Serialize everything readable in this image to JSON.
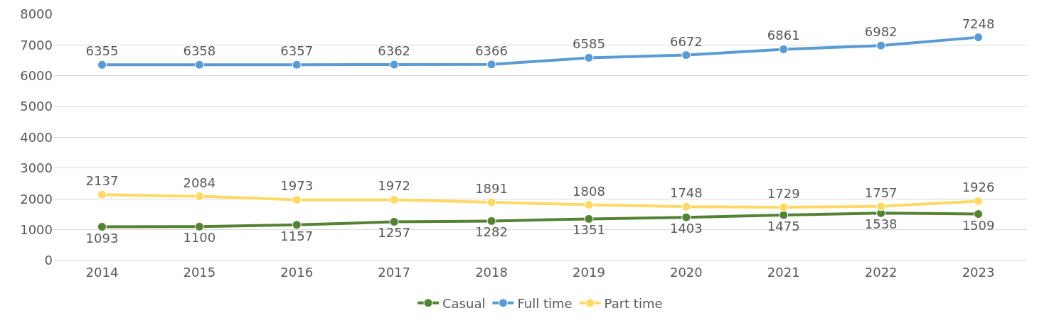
{
  "chart_data": {
    "type": "line",
    "categories": [
      "2014",
      "2015",
      "2016",
      "2017",
      "2018",
      "2019",
      "2020",
      "2021",
      "2022",
      "2023"
    ],
    "series": [
      {
        "name": "Casual",
        "color": "#548235",
        "values": [
          1093,
          1100,
          1157,
          1257,
          1282,
          1351,
          1403,
          1475,
          1538,
          1509
        ]
      },
      {
        "name": "Full time",
        "color": "#5b9bd5",
        "values": [
          6355,
          6358,
          6357,
          6362,
          6366,
          6585,
          6672,
          6861,
          6982,
          7248
        ]
      },
      {
        "name": "Part time",
        "color": "#ffd966",
        "values": [
          2137,
          2084,
          1973,
          1972,
          1891,
          1808,
          1748,
          1729,
          1757,
          1926
        ]
      }
    ],
    "ylim": [
      0,
      8000
    ],
    "yticks": [
      0,
      1000,
      2000,
      3000,
      4000,
      5000,
      6000,
      7000,
      8000
    ],
    "grid": "y",
    "legend": "bottom",
    "marker": "circle",
    "line_style": "solid",
    "data_labels": true
  }
}
